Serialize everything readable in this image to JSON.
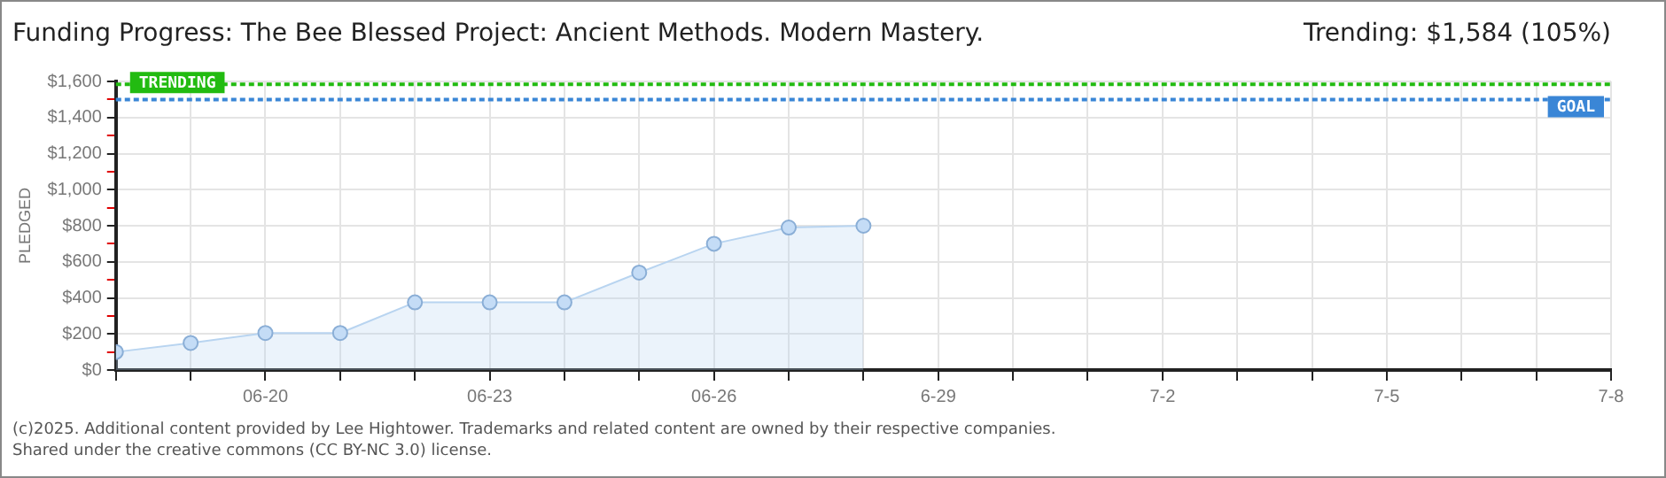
{
  "chart_data": {
    "type": "area",
    "title": "Funding Progress: The Bee Blessed Project: Ancient Methods. Modern Mastery.",
    "subtitle": "Trending: $1,584 (105%)",
    "ylabel": "PLEDGED",
    "x": [
      "--06-18",
      "--06-19",
      "--06-20",
      "--06-21",
      "--06-22",
      "--06-23",
      "--06-24",
      "--06-25",
      "--06-26",
      "--06-27",
      "--06-28"
    ],
    "values": [
      100,
      150,
      205,
      205,
      375,
      375,
      375,
      540,
      700,
      790,
      800
    ],
    "color": "#b8d4f0",
    "marker": "circle",
    "xlim": [
      "--06-18",
      "--07-08"
    ],
    "xticks": [
      {
        "value": "--06-18",
        "label": null
      },
      {
        "value": "--06-19",
        "label": null
      },
      {
        "value": "--06-20",
        "label": "06-20"
      },
      {
        "value": "--06-21",
        "label": null
      },
      {
        "value": "--06-22",
        "label": null
      },
      {
        "value": "--06-23",
        "label": "06-23"
      },
      {
        "value": "--06-24",
        "label": null
      },
      {
        "value": "--06-25",
        "label": null
      },
      {
        "value": "--06-26",
        "label": "06-26"
      },
      {
        "value": "--06-27",
        "label": null
      },
      {
        "value": "--06-28",
        "label": null
      },
      {
        "value": "--06-29",
        "label": "6-29"
      },
      {
        "value": "--06-30",
        "label": null
      },
      {
        "value": "--07-01",
        "label": null
      },
      {
        "value": "--07-02",
        "label": "7-2"
      },
      {
        "value": "--07-03",
        "label": null
      },
      {
        "value": "--07-04",
        "label": null
      },
      {
        "value": "--07-05",
        "label": "7-5"
      },
      {
        "value": "--07-06",
        "label": null
      },
      {
        "value": "--07-07",
        "label": null
      },
      {
        "value": "--07-08",
        "label": "7-8"
      }
    ],
    "ylim": [
      0,
      1600
    ],
    "yticks": [
      {
        "value": 0,
        "label": "$0"
      },
      {
        "value": 100,
        "label": null
      },
      {
        "value": 200,
        "label": "$200"
      },
      {
        "value": 300,
        "label": null
      },
      {
        "value": 400,
        "label": "$400"
      },
      {
        "value": 500,
        "label": null
      },
      {
        "value": 600,
        "label": "$600"
      },
      {
        "value": 700,
        "label": null
      },
      {
        "value": 800,
        "label": "$800"
      },
      {
        "value": 900,
        "label": null
      },
      {
        "value": 1000,
        "label": "$1,000"
      },
      {
        "value": 1100,
        "label": null
      },
      {
        "value": 1200,
        "label": "$1,200"
      },
      {
        "value": 1300,
        "label": null
      },
      {
        "value": 1400,
        "label": "$1,400"
      },
      {
        "value": 1500,
        "label": null
      },
      {
        "value": 1600,
        "label": "$1,600"
      }
    ],
    "grid": true,
    "ref_lines": [
      {
        "axis": "y",
        "value": 1584,
        "label": "TRENDING",
        "color": "#22bb11",
        "line_style": "dashed"
      },
      {
        "axis": "y",
        "value": 1500,
        "label": "GOAL",
        "color": "#3a86d6",
        "line_style": "dashed"
      }
    ],
    "annotations": [
      "(c)2025. Additional content provided by Lee Hightower. Trademarks and related content are owned by their respective companies.",
      "Shared under the creative commons (CC BY-NC 3.0) license."
    ]
  }
}
